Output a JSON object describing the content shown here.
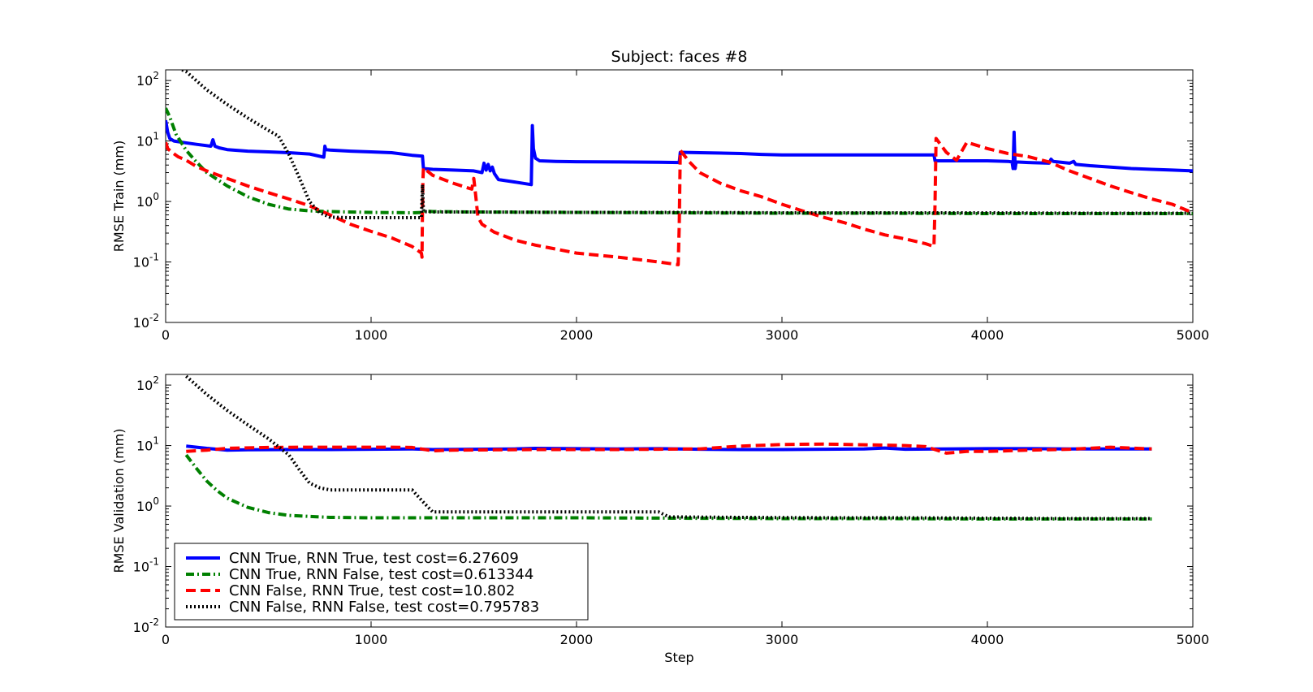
{
  "chart_data": [
    {
      "type": "line",
      "title": "Subject: faces #8",
      "xlabel": "",
      "ylabel": "RMSE Train (mm)",
      "xlim": [
        0,
        5000
      ],
      "ylim": [
        0.01,
        150
      ],
      "yscale": "log",
      "xticks": [
        "0",
        "1000",
        "2000",
        "3000",
        "4000",
        "5000"
      ],
      "yticks": [
        {
          "base": "10",
          "exp": "-2",
          "value": 0.01
        },
        {
          "base": "10",
          "exp": "-1",
          "value": 0.1
        },
        {
          "base": "10",
          "exp": "0",
          "value": 1
        },
        {
          "base": "10",
          "exp": "1",
          "value": 10
        },
        {
          "base": "10",
          "exp": "2",
          "value": 100
        }
      ],
      "grid": false,
      "series": [
        {
          "name": "CNN True, RNN True, test cost=6.27609",
          "color": "#0000ff",
          "style": "solid",
          "x": [
            0,
            10,
            20,
            40,
            80,
            150,
            220,
            230,
            240,
            260,
            300,
            400,
            500,
            600,
            700,
            770,
            775,
            780,
            800,
            900,
            1000,
            1100,
            1200,
            1250,
            1255,
            1300,
            1400,
            1500,
            1540,
            1550,
            1560,
            1570,
            1580,
            1590,
            1600,
            1620,
            1700,
            1780,
            1785,
            1790,
            1800,
            1820,
            1900,
            2000,
            2200,
            2400,
            2500,
            2505,
            2600,
            2800,
            2900,
            3000,
            3200,
            3400,
            3600,
            3740,
            3745,
            3800,
            4000,
            4100,
            4120,
            4125,
            4130,
            4135,
            4140,
            4200,
            4300,
            4310,
            4320,
            4400,
            4420,
            4430,
            4500,
            4600,
            4700,
            4800,
            4900,
            5000
          ],
          "y": [
            22,
            14,
            11,
            10,
            9.5,
            8.8,
            8.2,
            10.5,
            8.2,
            7.7,
            7.2,
            6.8,
            6.6,
            6.4,
            6.1,
            5.4,
            8.2,
            7.2,
            7.1,
            6.8,
            6.6,
            6.4,
            5.8,
            5.6,
            3.5,
            3.4,
            3.3,
            3.2,
            3.0,
            4.3,
            3.3,
            4.1,
            3.2,
            3.7,
            2.9,
            2.3,
            2.1,
            1.9,
            18,
            7.5,
            5.2,
            4.7,
            4.6,
            4.55,
            4.5,
            4.45,
            4.4,
            6.5,
            6.4,
            6.2,
            6.0,
            5.9,
            5.9,
            5.9,
            5.9,
            5.9,
            4.7,
            4.7,
            4.7,
            4.6,
            4.5,
            3.5,
            14,
            3.5,
            4.5,
            4.4,
            4.3,
            5.0,
            4.6,
            4.3,
            4.6,
            4.1,
            3.9,
            3.7,
            3.5,
            3.4,
            3.3,
            3.2
          ]
        },
        {
          "name": "CNN True, RNN False, test cost=0.613344",
          "color": "#008000",
          "style": "dashdot",
          "x": [
            0,
            20,
            50,
            100,
            150,
            200,
            300,
            400,
            500,
            600,
            700,
            800,
            1000,
            1200,
            1250,
            1255,
            1300,
            1500,
            2000,
            2500,
            3000,
            3500,
            4000,
            4500,
            5000
          ],
          "y": [
            35,
            25,
            13,
            7,
            4.5,
            3.0,
            1.8,
            1.2,
            0.9,
            0.75,
            0.7,
            0.68,
            0.66,
            0.65,
            0.66,
            0.7,
            0.68,
            0.67,
            0.66,
            0.65,
            0.64,
            0.64,
            0.63,
            0.63,
            0.63
          ]
        },
        {
          "name": "CNN False, RNN True, test cost=10.802",
          "color": "#ff0000",
          "style": "dashed",
          "x": [
            0,
            10,
            30,
            60,
            100,
            150,
            200,
            300,
            400,
            500,
            600,
            700,
            800,
            900,
            1000,
            1100,
            1200,
            1245,
            1248,
            1250,
            1252,
            1255,
            1300,
            1400,
            1490,
            1500,
            1510,
            1520,
            1540,
            1600,
            1700,
            1800,
            2000,
            2200,
            2400,
            2495,
            2500,
            2505,
            2550,
            2600,
            2700,
            2800,
            2900,
            3000,
            3100,
            3200,
            3300,
            3400,
            3500,
            3600,
            3700,
            3740,
            3745,
            3750,
            3800,
            3850,
            3900,
            4000,
            4100,
            4200,
            4300,
            4400,
            4500,
            4600,
            4700,
            4800,
            4900,
            5000
          ],
          "y": [
            9.5,
            7.5,
            6.5,
            5.5,
            4.8,
            3.8,
            3.2,
            2.4,
            1.8,
            1.4,
            1.1,
            0.85,
            0.6,
            0.42,
            0.32,
            0.25,
            0.18,
            0.14,
            0.12,
            0.7,
            2.2,
            3.6,
            2.7,
            2.0,
            1.6,
            2.4,
            1.2,
            0.55,
            0.42,
            0.31,
            0.23,
            0.19,
            0.14,
            0.12,
            0.1,
            0.09,
            0.4,
            7.0,
            4.5,
            3.0,
            2.0,
            1.5,
            1.2,
            0.9,
            0.7,
            0.55,
            0.45,
            0.35,
            0.28,
            0.24,
            0.2,
            0.18,
            0.9,
            11,
            6.5,
            4.8,
            9.5,
            7.5,
            6.2,
            5.5,
            4.5,
            3.2,
            2.4,
            1.8,
            1.4,
            1.1,
            0.9,
            0.65
          ]
        },
        {
          "name": "CNN False, RNN False, test cost=0.795783",
          "color": "#000000",
          "style": "dotted",
          "x": [
            80,
            100,
            200,
            300,
            400,
            500,
            550,
            600,
            650,
            700,
            750,
            800,
            900,
            1000,
            1100,
            1200,
            1245,
            1250,
            1255,
            1300,
            1500,
            2000,
            2500,
            3000,
            3500,
            4000,
            4500,
            5000
          ],
          "y": [
            150,
            140,
            70,
            40,
            24,
            15,
            12,
            6,
            2.5,
            1.0,
            0.65,
            0.55,
            0.54,
            0.54,
            0.54,
            0.54,
            0.54,
            1.9,
            0.68,
            0.67,
            0.67,
            0.66,
            0.66,
            0.65,
            0.65,
            0.65,
            0.64,
            0.64
          ]
        }
      ]
    },
    {
      "type": "line",
      "title": "",
      "xlabel": "Step",
      "ylabel": "RMSE Validation (mm)",
      "xlim": [
        0,
        5000
      ],
      "ylim": [
        0.01,
        150
      ],
      "yscale": "log",
      "xticks": [
        "0",
        "1000",
        "2000",
        "3000",
        "4000",
        "5000"
      ],
      "yticks": [
        {
          "base": "10",
          "exp": "-2",
          "value": 0.01
        },
        {
          "base": "10",
          "exp": "-1",
          "value": 0.1
        },
        {
          "base": "10",
          "exp": "0",
          "value": 1
        },
        {
          "base": "10",
          "exp": "1",
          "value": 10
        },
        {
          "base": "10",
          "exp": "2",
          "value": 100
        }
      ],
      "grid": false,
      "legend_loc": "lower-left",
      "series": [
        {
          "name": "CNN True, RNN True, test cost=6.27609",
          "color": "#0000ff",
          "style": "solid",
          "x": [
            100,
            200,
            300,
            400,
            600,
            800,
            1000,
            1200,
            1300,
            1500,
            1700,
            1800,
            2000,
            2200,
            2400,
            2600,
            2800,
            3000,
            3200,
            3400,
            3500,
            3600,
            3800,
            4000,
            4200,
            4400,
            4600,
            4800
          ],
          "y": [
            9.8,
            9.0,
            8.4,
            8.5,
            8.6,
            8.6,
            8.7,
            8.8,
            8.6,
            8.7,
            8.8,
            9.0,
            8.9,
            8.8,
            8.9,
            8.7,
            8.6,
            8.6,
            8.7,
            8.8,
            9.1,
            8.7,
            8.8,
            8.9,
            8.9,
            8.8,
            8.8,
            8.8
          ]
        },
        {
          "name": "CNN True, RNN False, test cost=0.613344",
          "color": "#008000",
          "style": "dashdot",
          "x": [
            100,
            150,
            200,
            250,
            300,
            400,
            500,
            600,
            800,
            1000,
            1500,
            2000,
            2500,
            3000,
            3500,
            4000,
            4500,
            4800
          ],
          "y": [
            7.0,
            4.2,
            2.6,
            1.8,
            1.35,
            0.95,
            0.78,
            0.7,
            0.65,
            0.64,
            0.64,
            0.64,
            0.63,
            0.62,
            0.62,
            0.61,
            0.61,
            0.61
          ]
        },
        {
          "name": "CNN False, RNN True, test cost=10.802",
          "color": "#ff0000",
          "style": "dashed",
          "x": [
            100,
            200,
            300,
            500,
            700,
            900,
            1100,
            1200,
            1300,
            1400,
            1600,
            1800,
            2000,
            2200,
            2400,
            2600,
            2800,
            3000,
            3200,
            3400,
            3600,
            3700,
            3800,
            3900,
            4000,
            4200,
            4400,
            4600,
            4800
          ],
          "y": [
            8.0,
            8.4,
            9.0,
            9.3,
            9.4,
            9.4,
            9.4,
            9.3,
            8.2,
            8.4,
            8.5,
            8.6,
            8.6,
            8.6,
            8.7,
            8.8,
            9.8,
            10.4,
            10.6,
            10.3,
            10.0,
            9.6,
            7.5,
            8.0,
            8.0,
            8.4,
            8.7,
            9.4,
            8.8
          ]
        },
        {
          "name": "CNN False, RNN False, test cost=0.795783",
          "color": "#000000",
          "style": "dotted",
          "x": [
            100,
            200,
            300,
            400,
            500,
            600,
            650,
            700,
            750,
            800,
            900,
            1000,
            1100,
            1200,
            1250,
            1300,
            1400,
            1600,
            1800,
            2000,
            2200,
            2400,
            2450,
            2500,
            2800,
            3200,
            3600,
            4000,
            4400,
            4800
          ],
          "y": [
            140,
            70,
            38,
            22,
            13,
            7.0,
            4.0,
            2.4,
            2.0,
            1.85,
            1.85,
            1.85,
            1.85,
            1.85,
            1.2,
            0.8,
            0.8,
            0.8,
            0.8,
            0.8,
            0.8,
            0.8,
            0.66,
            0.66,
            0.65,
            0.64,
            0.64,
            0.63,
            0.62,
            0.62
          ]
        }
      ]
    }
  ]
}
